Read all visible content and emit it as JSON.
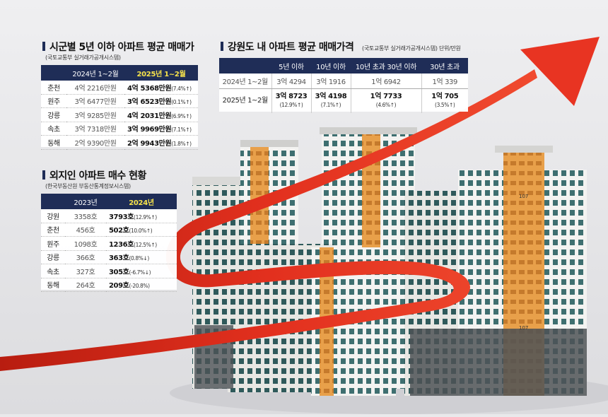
{
  "panel1": {
    "title": "시군별 5년 이하 아파트 평균 매매가",
    "source": "(국토교통부 실거래가공개시스템)",
    "headers": [
      "",
      "2024년 1~2월",
      "2025년 1~2월"
    ],
    "rows": [
      {
        "city": "춘천",
        "prev": "4억 2216만원",
        "curr": "4억 5368만원",
        "pct": "(7.4%↑)"
      },
      {
        "city": "원주",
        "prev": "3억 6477만원",
        "curr": "3억 6523만원",
        "pct": "(0.1%↑)"
      },
      {
        "city": "강릉",
        "prev": "3억 9285만원",
        "curr": "4억 2031만원",
        "pct": "(6.9%↑)"
      },
      {
        "city": "속초",
        "prev": "3억 7318만원",
        "curr": "3억 9969만원",
        "pct": "(7.1%↑)"
      },
      {
        "city": "동해",
        "prev": "2억 9390만원",
        "curr": "2억 9943만원",
        "pct": "(1.8%↑)"
      }
    ]
  },
  "panel2": {
    "title": "강원도 내 아파트 평균 매매가격",
    "source": "(국토교통부 실거래가공개시스템)",
    "unit": "단위/만원",
    "headers": [
      "",
      "5년 이하",
      "10년 이하",
      "10년 초과 30년 이하",
      "30년 초과"
    ],
    "row1": {
      "label": "2024년 1~2월",
      "values": [
        "3억 4294",
        "3억 1916",
        "1억 6942",
        "1억 339"
      ]
    },
    "row2": {
      "label": "2025년 1~2월",
      "values": [
        {
          "main": "3억 8723",
          "pct": "(12.9%↑)"
        },
        {
          "main": "3억 4198",
          "pct": "(7.1%↑)"
        },
        {
          "main": "1억 7733",
          "pct": "(4.6%↑)"
        },
        {
          "main": "1억 705",
          "pct": "(3.5%↑)"
        }
      ]
    }
  },
  "panel3": {
    "title": "외지인 아파트 매수 현황",
    "source": "(한국부동산원 부동산통계정보시스템)",
    "headers": [
      "",
      "2023년",
      "2024년"
    ],
    "rows": [
      {
        "city": "강원",
        "prev": "3358호",
        "curr": "3793호",
        "pct": "(12.9%↑)"
      },
      {
        "city": "춘천",
        "prev": "456호",
        "curr": "502호",
        "pct": "(10.0%↑)"
      },
      {
        "city": "원주",
        "prev": "1098호",
        "curr": "1236호",
        "pct": "(12.5%↑)"
      },
      {
        "city": "강릉",
        "prev": "366호",
        "curr": "363호",
        "pct": "(0.8%↓)"
      },
      {
        "city": "속초",
        "prev": "327호",
        "curr": "305호",
        "pct": "(-6.7%↓)"
      },
      {
        "city": "동해",
        "prev": "264호",
        "curr": "209호",
        "pct": "(-20.8%)"
      }
    ]
  },
  "illustration": {
    "building_labels": [
      "107",
      "107"
    ],
    "colors": {
      "navy": "#1f2d57",
      "highlight": "#f7e34b",
      "arrow_red": "#e2301e",
      "accent_orange": "#e8a04a"
    }
  }
}
